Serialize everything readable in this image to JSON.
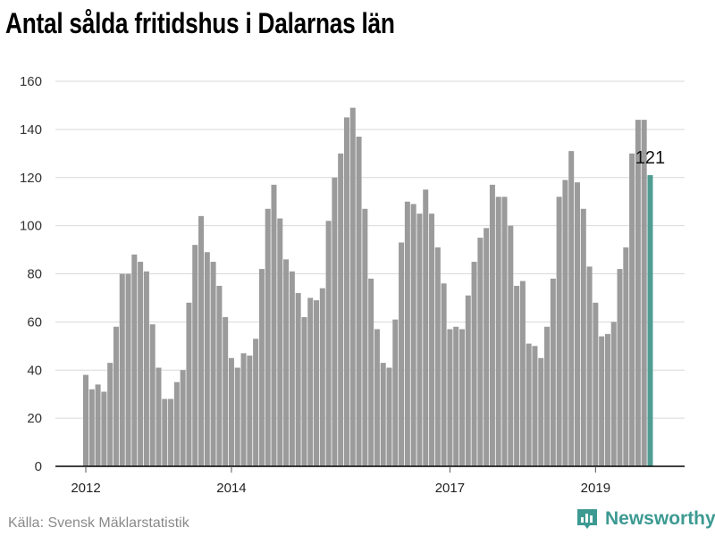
{
  "title": "Antal sålda fritidshus i Dalarnas län",
  "source": "Källa: Svensk Mäklarstatistik",
  "brand": {
    "name": "Newsworthy",
    "icon": "newsworthy-logo-icon"
  },
  "colors": {
    "bar": "#9b9b9b",
    "highlight": "#4f9d93",
    "brand": "#3d9a92",
    "grid": "#d9d9d9"
  },
  "chart_data": {
    "type": "bar",
    "title": "Antal sålda fritidshus i Dalarnas län",
    "xlabel": "",
    "ylabel": "",
    "ylim": [
      0,
      160
    ],
    "yticks": [
      0,
      20,
      40,
      60,
      80,
      100,
      120,
      140,
      160
    ],
    "x_start": "2012-01",
    "x_ticks": [
      {
        "label": "2012",
        "date": "2012-01"
      },
      {
        "label": "2014",
        "date": "2014-01"
      },
      {
        "label": "2017",
        "date": "2017-01"
      },
      {
        "label": "2019",
        "date": "2019-01"
      }
    ],
    "grid": true,
    "legend": "none",
    "values": [
      38,
      32,
      34,
      31,
      43,
      58,
      80,
      80,
      88,
      85,
      81,
      59,
      41,
      28,
      28,
      35,
      40,
      68,
      92,
      104,
      89,
      85,
      75,
      62,
      45,
      41,
      47,
      46,
      53,
      82,
      107,
      117,
      103,
      86,
      81,
      72,
      62,
      70,
      69,
      74,
      102,
      120,
      130,
      145,
      149,
      137,
      107,
      78,
      57,
      43,
      41,
      61,
      93,
      110,
      109,
      105,
      115,
      105,
      91,
      76,
      57,
      58,
      57,
      71,
      85,
      95,
      99,
      117,
      112,
      112,
      100,
      75,
      77,
      51,
      50,
      45,
      58,
      78,
      112,
      119,
      131,
      118,
      107,
      83,
      68,
      54,
      55,
      60,
      82,
      91,
      130,
      144,
      144,
      121
    ],
    "highlight_last": true,
    "annotation": {
      "text": "121",
      "index": 93
    }
  }
}
